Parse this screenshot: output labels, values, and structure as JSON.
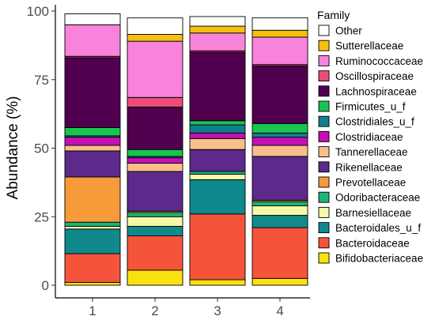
{
  "chart_data": {
    "type": "bar",
    "stacked": true,
    "title": "",
    "xlabel": "",
    "ylabel": "Abundance (%)",
    "ylim": [
      0,
      100
    ],
    "yticks": [
      "0",
      "25",
      "50",
      "75",
      "100"
    ],
    "categories": [
      "1",
      "2",
      "3",
      "4"
    ],
    "legend_title": "Family",
    "legend_position": "right",
    "grid": false,
    "series": [
      {
        "name": "Bifidobacteriaceae",
        "color": "#F9E10F",
        "values": [
          1,
          5.5,
          2,
          2.5
        ]
      },
      {
        "name": "Bacteroidaceae",
        "color": "#F4553A",
        "values": [
          10.5,
          12.5,
          24,
          18.5
        ]
      },
      {
        "name": "Bacteroidales_u_f",
        "color": "#10898C",
        "values": [
          9,
          3.5,
          12.5,
          4.5
        ]
      },
      {
        "name": "Barnesiellaceae",
        "color": "#F3F9A8",
        "values": [
          1,
          3.5,
          2,
          3.5
        ]
      },
      {
        "name": "Odoribacteraceae",
        "color": "#1CB47A",
        "values": [
          1.5,
          1.5,
          1,
          1.5
        ]
      },
      {
        "name": "Prevotellaceae",
        "color": "#F79A3A",
        "values": [
          16.5,
          0.5,
          0,
          0.5
        ]
      },
      {
        "name": "Rikenellaceae",
        "color": "#5C2A8A",
        "values": [
          9.5,
          14.5,
          8,
          16
        ]
      },
      {
        "name": "Tannerellaceae",
        "color": "#F9BE8B",
        "values": [
          2,
          3,
          4,
          4
        ]
      },
      {
        "name": "Clostridiaceae",
        "color": "#C410B4",
        "values": [
          3,
          2,
          2,
          3
        ]
      },
      {
        "name": "Clostridiales_u_f",
        "color": "#127E8E",
        "values": [
          0.5,
          0.5,
          3,
          1.5
        ]
      },
      {
        "name": "Firmicutes_u_f",
        "color": "#19C450",
        "values": [
          3,
          2.5,
          1.5,
          3.5
        ]
      },
      {
        "name": "Lachnospiraceae",
        "color": "#50004E",
        "values": [
          25.5,
          15.5,
          25,
          21
        ]
      },
      {
        "name": "Oscillospiraceae",
        "color": "#EB4C76",
        "values": [
          0.5,
          3.5,
          0.5,
          0.5
        ]
      },
      {
        "name": "Ruminococcaceae",
        "color": "#F783DC",
        "values": [
          11.5,
          20.5,
          6.5,
          10
        ]
      },
      {
        "name": "Sutterellaceae",
        "color": "#F7C00F",
        "values": [
          0,
          2.5,
          2.5,
          2.5
        ]
      },
      {
        "name": "Other",
        "color": "#FFFFFF",
        "values": [
          4,
          6,
          3.5,
          4.5
        ]
      }
    ]
  }
}
